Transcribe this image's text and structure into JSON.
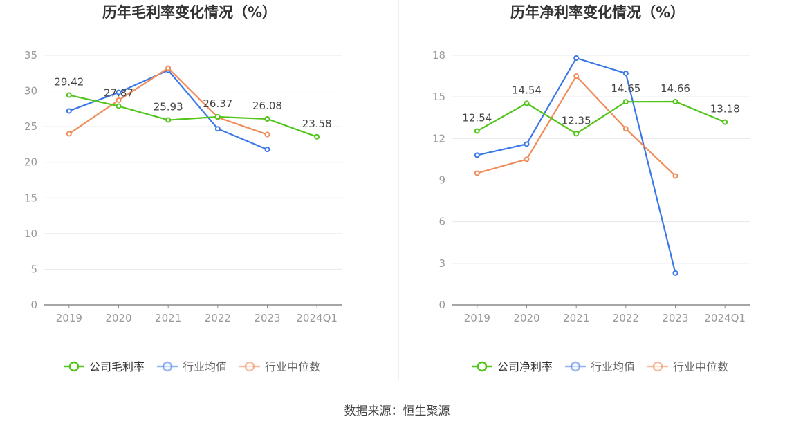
{
  "chart_data": [
    {
      "type": "line",
      "title": "历年毛利率变化情况（%）",
      "categories": [
        "2019",
        "2020",
        "2021",
        "2022",
        "2023",
        "2024Q1"
      ],
      "ylim": [
        0,
        35
      ],
      "yticks": [
        0,
        5,
        10,
        15,
        20,
        25,
        30,
        35
      ],
      "grid": true,
      "legend_position": "bottom",
      "series": [
        {
          "name": "公司毛利率",
          "color": "#52c41a",
          "values": [
            29.42,
            27.87,
            25.93,
            26.37,
            26.08,
            23.58
          ],
          "labels": [
            "29.42",
            "27.87",
            "25.93",
            "26.37",
            "26.08",
            "23.58"
          ]
        },
        {
          "name": "行业均值",
          "color": "#3b78e7",
          "values": [
            27.2,
            29.8,
            32.9,
            24.7,
            21.8,
            null
          ]
        },
        {
          "name": "行业中位数",
          "color": "#f08c5a",
          "values": [
            24.0,
            28.7,
            33.2,
            26.3,
            23.9,
            null
          ]
        }
      ]
    },
    {
      "type": "line",
      "title": "历年净利率变化情况（%）",
      "categories": [
        "2019",
        "2020",
        "2021",
        "2022",
        "2023",
        "2024Q1"
      ],
      "ylim": [
        0,
        18
      ],
      "yticks": [
        0,
        3,
        6,
        9,
        12,
        15,
        18
      ],
      "grid": true,
      "legend_position": "bottom",
      "series": [
        {
          "name": "公司净利率",
          "color": "#52c41a",
          "values": [
            12.54,
            14.54,
            12.35,
            14.65,
            14.66,
            13.18
          ],
          "labels": [
            "12.54",
            "14.54",
            "12.35",
            "14.65",
            "14.66",
            "13.18"
          ]
        },
        {
          "name": "行业均值",
          "color": "#3b78e7",
          "values": [
            10.8,
            11.6,
            17.8,
            16.7,
            2.3,
            null
          ]
        },
        {
          "name": "行业中位数",
          "color": "#f08c5a",
          "values": [
            9.5,
            10.5,
            16.5,
            12.7,
            9.3,
            null
          ]
        }
      ]
    }
  ],
  "source_text": "数据来源：恒生聚源"
}
